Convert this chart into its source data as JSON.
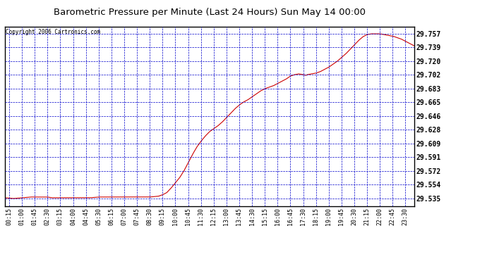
{
  "title": "Barometric Pressure per Minute (Last 24 Hours) Sun May 14 00:00",
  "copyright": "Copyright 2006 Cartronics.com",
  "line_color": "#cc0000",
  "background_color": "#ffffff",
  "plot_bg_color": "#ffffff",
  "grid_color": "#0000cc",
  "text_color": "#000000",
  "yticks": [
    29.535,
    29.554,
    29.572,
    29.591,
    29.609,
    29.628,
    29.646,
    29.665,
    29.683,
    29.702,
    29.72,
    29.739,
    29.757
  ],
  "ylim": [
    29.525,
    29.767
  ],
  "xtick_labels": [
    "00:15",
    "01:00",
    "01:45",
    "02:30",
    "03:15",
    "04:00",
    "04:45",
    "05:30",
    "06:15",
    "07:00",
    "07:45",
    "08:30",
    "09:15",
    "10:00",
    "10:45",
    "11:30",
    "12:15",
    "13:00",
    "13:45",
    "14:30",
    "15:15",
    "16:00",
    "16:45",
    "17:30",
    "18:15",
    "19:00",
    "19:45",
    "20:30",
    "21:15",
    "22:00",
    "22:45",
    "23:30"
  ],
  "key_points": [
    [
      0,
      29.536
    ],
    [
      30,
      29.535
    ],
    [
      60,
      29.536
    ],
    [
      90,
      29.537
    ],
    [
      120,
      29.537
    ],
    [
      150,
      29.537
    ],
    [
      165,
      29.536
    ],
    [
      200,
      29.536
    ],
    [
      240,
      29.536
    ],
    [
      270,
      29.536
    ],
    [
      300,
      29.536
    ],
    [
      330,
      29.537
    ],
    [
      360,
      29.537
    ],
    [
      390,
      29.537
    ],
    [
      420,
      29.537
    ],
    [
      450,
      29.537
    ],
    [
      480,
      29.537
    ],
    [
      510,
      29.537
    ],
    [
      540,
      29.538
    ],
    [
      555,
      29.54
    ],
    [
      570,
      29.543
    ],
    [
      585,
      29.549
    ],
    [
      600,
      29.556
    ],
    [
      615,
      29.563
    ],
    [
      630,
      29.572
    ],
    [
      645,
      29.583
    ],
    [
      660,
      29.594
    ],
    [
      675,
      29.604
    ],
    [
      690,
      29.612
    ],
    [
      705,
      29.619
    ],
    [
      720,
      29.625
    ],
    [
      735,
      29.629
    ],
    [
      750,
      29.633
    ],
    [
      765,
      29.638
    ],
    [
      780,
      29.644
    ],
    [
      795,
      29.65
    ],
    [
      810,
      29.656
    ],
    [
      825,
      29.661
    ],
    [
      840,
      29.665
    ],
    [
      855,
      29.668
    ],
    [
      870,
      29.672
    ],
    [
      885,
      29.676
    ],
    [
      900,
      29.68
    ],
    [
      915,
      29.683
    ],
    [
      930,
      29.685
    ],
    [
      945,
      29.687
    ],
    [
      960,
      29.69
    ],
    [
      975,
      29.693
    ],
    [
      990,
      29.696
    ],
    [
      1005,
      29.7
    ],
    [
      1020,
      29.702
    ],
    [
      1035,
      29.703
    ],
    [
      1050,
      29.702
    ],
    [
      1060,
      29.701
    ],
    [
      1065,
      29.702
    ],
    [
      1080,
      29.703
    ],
    [
      1095,
      29.704
    ],
    [
      1110,
      29.706
    ],
    [
      1125,
      29.709
    ],
    [
      1140,
      29.712
    ],
    [
      1155,
      29.716
    ],
    [
      1170,
      29.72
    ],
    [
      1185,
      29.725
    ],
    [
      1200,
      29.73
    ],
    [
      1215,
      29.736
    ],
    [
      1230,
      29.742
    ],
    [
      1245,
      29.748
    ],
    [
      1260,
      29.753
    ],
    [
      1275,
      29.756
    ],
    [
      1290,
      29.757
    ],
    [
      1305,
      29.757
    ],
    [
      1320,
      29.757
    ],
    [
      1335,
      29.756
    ],
    [
      1350,
      29.755
    ],
    [
      1360,
      29.754
    ],
    [
      1365,
      29.754
    ],
    [
      1380,
      29.752
    ],
    [
      1395,
      29.75
    ],
    [
      1410,
      29.747
    ],
    [
      1425,
      29.744
    ],
    [
      1440,
      29.741
    ]
  ]
}
